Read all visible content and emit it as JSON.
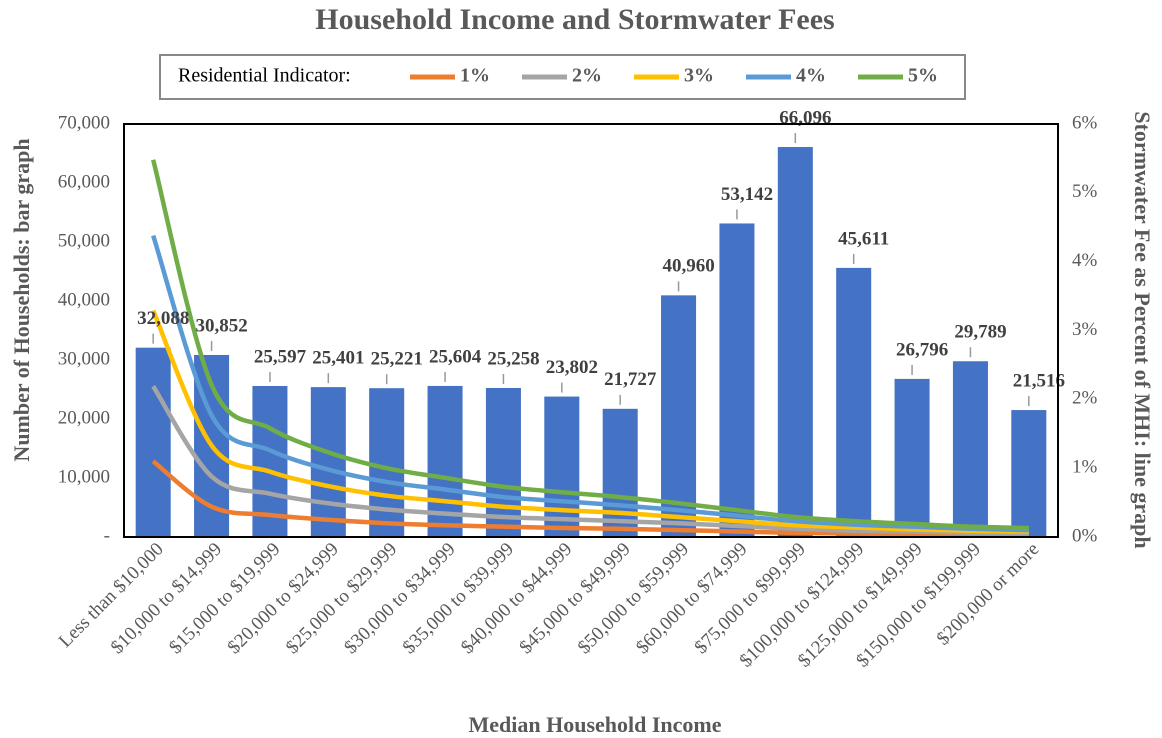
{
  "chart_data": {
    "type": "bar",
    "title": "Household Income and Stormwater Fees",
    "legend_title": "Residential Indicator:",
    "x_label": "Median Household Income",
    "y_label": "Number of Households: bar graph",
    "y2_label": "Stormwater Fee as Percent of MHI: line graph",
    "categories": [
      "Less than $10,000",
      "$10,000 to $14,999",
      "$15,000 to $19,999",
      "$20,000 to $24,999",
      "$25,000 to $29,999",
      "$30,000 to $34,999",
      "$35,000 to $39,999",
      "$40,000 to $44,999",
      "$45,000 to $49,999",
      "$50,000 to $59,999",
      "$60,000 to $74,999",
      "$75,000 to $99,999",
      "$100,000 to $124,999",
      "$125,000 to $149,999",
      "$150,000 to $199,999",
      "$200,000 or more"
    ],
    "values": [
      32088,
      30852,
      25597,
      25401,
      25221,
      25604,
      25258,
      23802,
      21727,
      40960,
      53142,
      66096,
      45611,
      26796,
      29789,
      21516
    ],
    "value_labels": [
      "32,088",
      "30,852",
      "25,597",
      "25,401",
      "25,221",
      "25,604",
      "25,258",
      "23,802",
      "21,727",
      "40,960",
      "53,142",
      "66,096",
      "45,611",
      "26,796",
      "29,789",
      "21,516"
    ],
    "color": "#4472c4",
    "series": [
      {
        "name": "1%",
        "color": "#ed7d31",
        "axis": "y2",
        "values": [
          1.1,
          0.44,
          0.32,
          0.25,
          0.2,
          0.17,
          0.15,
          0.13,
          0.12,
          0.1,
          0.08,
          0.06,
          0.05,
          0.04,
          0.03,
          0.03
        ]
      },
      {
        "name": "2%",
        "color": "#a5a5a5",
        "axis": "y2",
        "values": [
          2.19,
          0.88,
          0.63,
          0.49,
          0.4,
          0.34,
          0.29,
          0.26,
          0.23,
          0.2,
          0.16,
          0.12,
          0.09,
          0.08,
          0.06,
          0.05
        ]
      },
      {
        "name": "3%",
        "color": "#ffc000",
        "axis": "y2",
        "values": [
          3.29,
          1.33,
          0.95,
          0.74,
          0.6,
          0.52,
          0.44,
          0.39,
          0.35,
          0.29,
          0.23,
          0.17,
          0.14,
          0.11,
          0.09,
          0.08
        ]
      },
      {
        "name": "4%",
        "color": "#5b9bd5",
        "axis": "y2",
        "values": [
          4.38,
          1.77,
          1.26,
          0.98,
          0.8,
          0.69,
          0.58,
          0.52,
          0.46,
          0.39,
          0.31,
          0.23,
          0.18,
          0.15,
          0.12,
          0.1
        ]
      },
      {
        "name": "5%",
        "color": "#70ad47",
        "axis": "y2",
        "values": [
          5.48,
          2.21,
          1.58,
          1.23,
          1.0,
          0.86,
          0.73,
          0.65,
          0.58,
          0.49,
          0.39,
          0.29,
          0.23,
          0.19,
          0.15,
          0.13
        ]
      }
    ],
    "ylim": [
      0,
      70000
    ],
    "yticks": [
      {
        "value": 0,
        "label": "-"
      },
      {
        "value": 10000,
        "label": "10,000"
      },
      {
        "value": 20000,
        "label": "20,000"
      },
      {
        "value": 30000,
        "label": "30,000"
      },
      {
        "value": 40000,
        "label": "40,000"
      },
      {
        "value": 50000,
        "label": "50,000"
      },
      {
        "value": 60000,
        "label": "60,000"
      },
      {
        "value": 70000,
        "label": "70,000"
      }
    ],
    "y2lim": [
      0,
      6
    ],
    "y2ticks": [
      {
        "value": 0,
        "label": "0%"
      },
      {
        "value": 1,
        "label": "1%"
      },
      {
        "value": 2,
        "label": "2%"
      },
      {
        "value": 3,
        "label": "3%"
      },
      {
        "value": 4,
        "label": "4%"
      },
      {
        "value": 5,
        "label": "5%"
      },
      {
        "value": 6,
        "label": "6%"
      }
    ],
    "grid": false
  }
}
